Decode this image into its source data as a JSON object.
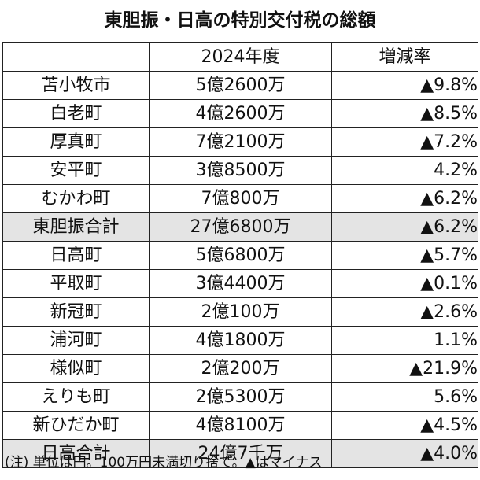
{
  "title": "東胆振・日高の特別交付税の総額",
  "header": {
    "name": "",
    "amount": "2024年度",
    "rate": "増減率"
  },
  "rows": [
    {
      "name": "苫小牧市",
      "amount": "5億2600万",
      "rate": "▲9.8%",
      "total": false
    },
    {
      "name": "白老町",
      "amount": "4億2600万",
      "rate": "▲8.5%",
      "total": false
    },
    {
      "name": "厚真町",
      "amount": "7億2100万",
      "rate": "▲7.2%",
      "total": false
    },
    {
      "name": "安平町",
      "amount": "3億8500万",
      "rate": "4.2%",
      "total": false
    },
    {
      "name": "むかわ町",
      "amount": "7億800万",
      "rate": "▲6.2%",
      "total": false
    },
    {
      "name": "東胆振合計",
      "amount": "27億6800万",
      "rate": "▲6.2%",
      "total": true
    },
    {
      "name": "日高町",
      "amount": "5億6800万",
      "rate": "▲5.7%",
      "total": false
    },
    {
      "name": "平取町",
      "amount": "3億4400万",
      "rate": "▲0.1%",
      "total": false
    },
    {
      "name": "新冠町",
      "amount": "2億100万",
      "rate": "▲2.6%",
      "total": false
    },
    {
      "name": "浦河町",
      "amount": "4億1800万",
      "rate": "1.1%",
      "total": false
    },
    {
      "name": "様似町",
      "amount": "2億200万",
      "rate": "▲21.9%",
      "total": false
    },
    {
      "name": "えりも町",
      "amount": "2億5300万",
      "rate": "5.6%",
      "total": false
    },
    {
      "name": "新ひだか町",
      "amount": "4億8100万",
      "rate": "▲4.5%",
      "total": false
    },
    {
      "name": "日高合計",
      "amount": "24億7千万",
      "rate": "▲4.0%",
      "total": true
    }
  ],
  "note": "(注) 単位は円。100万円未満切り捨て。▲はマイナス",
  "colors": {
    "total_row_bg": "#e4e4e4",
    "border": "#222222"
  }
}
